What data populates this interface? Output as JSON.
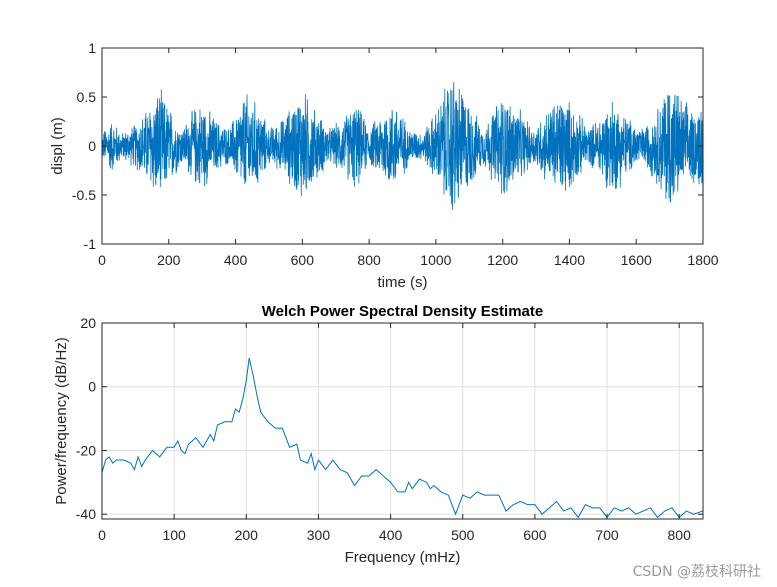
{
  "colors": {
    "line": "#0072BD",
    "axis": "#262626",
    "grid": "#dfdfdf"
  },
  "watermark": "CSDN @荔枝科研社",
  "chart_data": [
    {
      "type": "line",
      "title": "",
      "xlabel": "time (s)",
      "ylabel": "displ (m)",
      "xlim": [
        0,
        1800
      ],
      "ylim": [
        -1,
        1
      ],
      "xticks": [
        "0",
        "200",
        "400",
        "600",
        "800",
        "1000",
        "1200",
        "1400",
        "1600",
        "1800"
      ],
      "yticks": [
        "-1",
        "-0.5",
        "0",
        "0.5",
        "1"
      ],
      "grid": false,
      "note": "dense random-vibration signal; envelope = approx peak amplitude vs time",
      "envelope_t": [
        0,
        30,
        60,
        100,
        140,
        170,
        200,
        240,
        280,
        300,
        340,
        380,
        430,
        470,
        500,
        540,
        600,
        640,
        680,
        720,
        760,
        800,
        840,
        880,
        920,
        960,
        1000,
        1050,
        1100,
        1140,
        1200,
        1250,
        1290,
        1330,
        1380,
        1420,
        1460,
        1530,
        1580,
        1620,
        1660,
        1700,
        1740,
        1780,
        1800
      ],
      "envelope_a": [
        0.15,
        0.3,
        0.15,
        0.25,
        0.45,
        0.65,
        0.45,
        0.2,
        0.45,
        0.5,
        0.3,
        0.2,
        0.6,
        0.45,
        0.2,
        0.3,
        0.65,
        0.4,
        0.2,
        0.3,
        0.5,
        0.2,
        0.4,
        0.5,
        0.2,
        0.15,
        0.4,
        0.85,
        0.5,
        0.2,
        0.6,
        0.4,
        0.2,
        0.4,
        0.6,
        0.4,
        0.2,
        0.55,
        0.3,
        0.2,
        0.4,
        0.8,
        0.5,
        0.4,
        0.6
      ]
    },
    {
      "type": "line",
      "title": "Welch Power Spectral Density Estimate",
      "xlabel": "Frequency (mHz)",
      "ylabel": "Power/frequency (dB/Hz)",
      "xlim": [
        0,
        833
      ],
      "ylim": [
        -41.5,
        20
      ],
      "xticks": [
        "0",
        "100",
        "200",
        "300",
        "400",
        "500",
        "600",
        "700",
        "800"
      ],
      "yticks": [
        "-40",
        "-20",
        "0",
        "20"
      ],
      "grid": true,
      "x": [
        0,
        5,
        10,
        15,
        20,
        30,
        40,
        45,
        50,
        55,
        60,
        70,
        80,
        90,
        100,
        105,
        110,
        115,
        120,
        130,
        140,
        150,
        155,
        160,
        170,
        180,
        185,
        190,
        195,
        200,
        204,
        210,
        215,
        220,
        230,
        240,
        250,
        255,
        260,
        270,
        275,
        285,
        290,
        295,
        300,
        310,
        320,
        330,
        340,
        350,
        360,
        370,
        380,
        390,
        400,
        410,
        420,
        425,
        430,
        440,
        450,
        455,
        460,
        470,
        480,
        490,
        500,
        510,
        520,
        530,
        540,
        550,
        560,
        570,
        580,
        590,
        600,
        610,
        620,
        630,
        640,
        650,
        660,
        670,
        680,
        690,
        700,
        710,
        720,
        730,
        740,
        750,
        760,
        770,
        780,
        790,
        800,
        810,
        820,
        833
      ],
      "y": [
        -27,
        -23,
        -22,
        -24,
        -23,
        -23,
        -24,
        -26,
        -22,
        -25,
        -23,
        -20,
        -22,
        -19,
        -19,
        -17,
        -20,
        -21,
        -18,
        -16,
        -19,
        -15,
        -17,
        -12,
        -11,
        -11,
        -7,
        -8,
        -4,
        2,
        9,
        3,
        -3,
        -8,
        -11,
        -13,
        -13,
        -16,
        -19,
        -18,
        -23,
        -24,
        -21,
        -26,
        -23,
        -26,
        -23,
        -26,
        -27,
        -31,
        -28,
        -28,
        -26,
        -28,
        -30,
        -33,
        -33,
        -30,
        -32,
        -29,
        -30,
        -32,
        -31,
        -33,
        -34,
        -40,
        -34,
        -35,
        -33,
        -34,
        -34,
        -34,
        -39,
        -37,
        -36,
        -37,
        -37,
        -40,
        -38,
        -36,
        -39,
        -38,
        -41,
        -37,
        -38,
        -38,
        -41,
        -38,
        -39,
        -38,
        -40,
        -39,
        -38,
        -41,
        -39,
        -38,
        -41,
        -39,
        -40,
        -39
      ]
    }
  ]
}
